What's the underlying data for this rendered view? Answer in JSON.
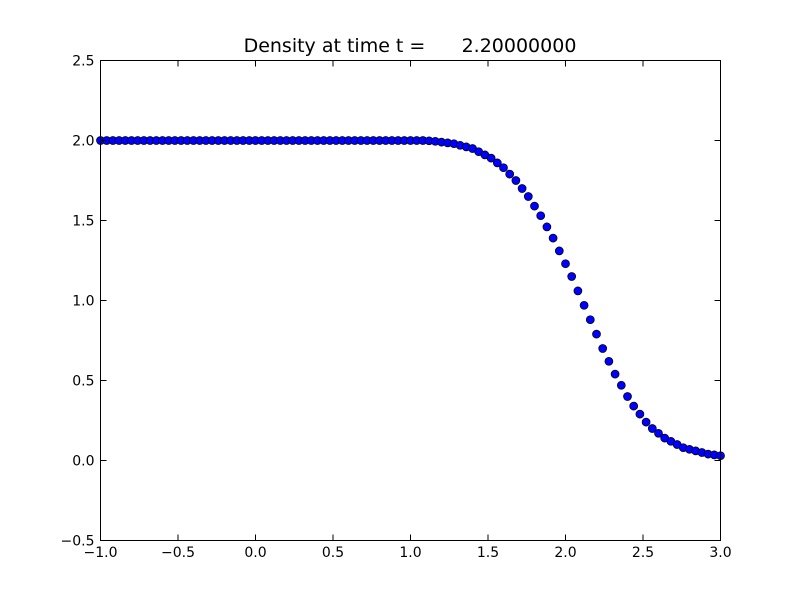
{
  "chart_data": {
    "type": "scatter",
    "title": "Density at time t =      2.20000000",
    "xlabel": "",
    "ylabel": "",
    "xlim": [
      -1.0,
      3.0
    ],
    "ylim": [
      -0.5,
      2.5
    ],
    "grid": false,
    "legend": "none",
    "x_ticks": [
      {
        "value": -1.0,
        "label": "−1.0"
      },
      {
        "value": -0.5,
        "label": "−0.5"
      },
      {
        "value": 0.0,
        "label": "0.0"
      },
      {
        "value": 0.5,
        "label": "0.5"
      },
      {
        "value": 1.0,
        "label": "1.0"
      },
      {
        "value": 1.5,
        "label": "1.5"
      },
      {
        "value": 2.0,
        "label": "2.0"
      },
      {
        "value": 2.5,
        "label": "2.5"
      },
      {
        "value": 3.0,
        "label": "3.0"
      }
    ],
    "y_ticks": [
      {
        "value": -0.5,
        "label": "−0.5"
      },
      {
        "value": 0.0,
        "label": "0.0"
      },
      {
        "value": 0.5,
        "label": "0.5"
      },
      {
        "value": 1.0,
        "label": "1.0"
      },
      {
        "value": 1.5,
        "label": "1.5"
      },
      {
        "value": 2.0,
        "label": "2.0"
      },
      {
        "value": 2.5,
        "label": "2.5"
      }
    ],
    "marker_color": "#0000ff",
    "marker_edge_color": "#000000",
    "series": [
      {
        "x": [
          -1.0,
          -0.96,
          -0.92,
          -0.88,
          -0.84,
          -0.8,
          -0.76,
          -0.72,
          -0.68,
          -0.64,
          -0.6,
          -0.56,
          -0.52,
          -0.48,
          -0.44,
          -0.4,
          -0.36,
          -0.32,
          -0.28,
          -0.24,
          -0.2,
          -0.16,
          -0.12,
          -0.08,
          -0.04,
          0.0,
          0.04,
          0.08,
          0.12,
          0.16,
          0.2,
          0.24,
          0.28,
          0.32,
          0.36,
          0.4,
          0.44,
          0.48,
          0.52,
          0.56,
          0.6,
          0.64,
          0.68,
          0.72,
          0.76,
          0.8,
          0.84,
          0.88,
          0.92,
          0.96,
          1.0,
          1.04,
          1.08,
          1.12,
          1.16,
          1.2,
          1.24,
          1.28,
          1.32,
          1.36,
          1.4,
          1.44,
          1.48,
          1.52,
          1.56,
          1.6,
          1.64,
          1.68,
          1.72,
          1.76,
          1.8,
          1.84,
          1.88,
          1.92,
          1.96,
          2.0,
          2.04,
          2.08,
          2.12,
          2.16,
          2.2,
          2.24,
          2.28,
          2.32,
          2.36,
          2.4,
          2.44,
          2.48,
          2.52,
          2.56,
          2.6,
          2.64,
          2.68,
          2.72,
          2.76,
          2.8,
          2.84,
          2.88,
          2.92,
          2.96,
          3.0
        ],
        "y": [
          2.0,
          2.0,
          2.0,
          2.0,
          2.0,
          2.0,
          2.0,
          2.0,
          2.0,
          2.0,
          2.0,
          2.0,
          2.0,
          2.0,
          2.0,
          2.0,
          2.0,
          2.0,
          2.0,
          2.0,
          2.0,
          2.0,
          2.0,
          2.0,
          2.0,
          2.0,
          2.0,
          2.0,
          2.0,
          2.0,
          2.0,
          2.0,
          2.0,
          2.0,
          2.0,
          2.0,
          2.0,
          2.0,
          2.0,
          2.0,
          2.0,
          2.0,
          2.0,
          2.0,
          2.0,
          2.0,
          2.0,
          2.0,
          2.0,
          2.0,
          2.0,
          2.0,
          2.0,
          1.998,
          1.995,
          1.99,
          1.985,
          1.98,
          1.97,
          1.96,
          1.95,
          1.93,
          1.91,
          1.89,
          1.86,
          1.83,
          1.79,
          1.75,
          1.7,
          1.65,
          1.59,
          1.53,
          1.46,
          1.39,
          1.31,
          1.23,
          1.15,
          1.06,
          0.97,
          0.88,
          0.79,
          0.7,
          0.62,
          0.54,
          0.47,
          0.4,
          0.34,
          0.29,
          0.24,
          0.2,
          0.17,
          0.14,
          0.12,
          0.1,
          0.08,
          0.07,
          0.06,
          0.05,
          0.04,
          0.035,
          0.03
        ]
      }
    ]
  }
}
